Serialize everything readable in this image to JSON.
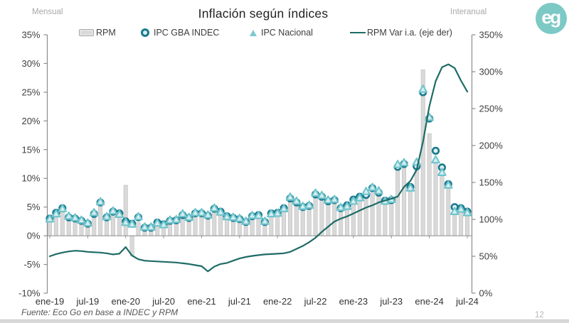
{
  "header": {
    "left_label": "Mensual",
    "title": "Inflación según índices",
    "right_label": "Interanual",
    "logo_text": "eg"
  },
  "legend": {
    "items": [
      {
        "label": "RPM",
        "icon": "gray-bar-swatch"
      },
      {
        "label": "IPC GBA INDEC",
        "icon": "teal-circle-marker"
      },
      {
        "label": "IPC Nacional",
        "icon": "light-teal-triangle-marker"
      },
      {
        "label": "RPM Var i.a. (eje der)",
        "icon": "dark-teal-line"
      }
    ]
  },
  "footer": {
    "source": "Fuente: Eco Go en base a INDEC y RPM",
    "page_number": "12"
  },
  "colors": {
    "bar_fill": "#d9d9d9",
    "bar_stroke": "#bdbdbd",
    "circle_stroke": "#1a7a8e",
    "circle_fill": "#e3f1f4",
    "triangle_stroke": "#6fc4cc",
    "triangle_fill": "#d8eef0",
    "line": "#1e6b66",
    "axis": "#8c8c8c",
    "axis_text": "#3f3f3f",
    "logo": "#7cc9c5"
  },
  "chart_data": {
    "type": "combo",
    "months": [
      "ene-19",
      "feb-19",
      "mar-19",
      "abr-19",
      "may-19",
      "jun-19",
      "jul-19",
      "ago-19",
      "sep-19",
      "oct-19",
      "nov-19",
      "dic-19",
      "ene-20",
      "feb-20",
      "mar-20",
      "abr-20",
      "may-20",
      "jun-20",
      "jul-20",
      "ago-20",
      "sep-20",
      "oct-20",
      "nov-20",
      "dic-20",
      "ene-21",
      "feb-21",
      "mar-21",
      "abr-21",
      "may-21",
      "jun-21",
      "jul-21",
      "ago-21",
      "sep-21",
      "oct-21",
      "nov-21",
      "dic-21",
      "ene-22",
      "feb-22",
      "mar-22",
      "abr-22",
      "may-22",
      "jun-22",
      "jul-22",
      "ago-22",
      "sep-22",
      "oct-22",
      "nov-22",
      "dic-22",
      "ene-23",
      "feb-23",
      "mar-23",
      "abr-23",
      "may-23",
      "jun-23",
      "jul-23",
      "ago-23",
      "sep-23",
      "oct-23",
      "nov-23",
      "dic-23",
      "ene-24",
      "feb-24",
      "mar-24",
      "abr-24",
      "may-24",
      "jun-24",
      "jul-24"
    ],
    "x_tick_labels": [
      "ene-19",
      "jul-19",
      "ene-20",
      "jul-20",
      "ene-21",
      "jul-21",
      "ene-22",
      "jul-22",
      "ene-23",
      "jul-23",
      "ene-24",
      "jul-24"
    ],
    "x_tick_indices": [
      0,
      6,
      12,
      18,
      24,
      30,
      36,
      42,
      48,
      54,
      60,
      66
    ],
    "left_axis": {
      "min": -10,
      "max": 35,
      "tick_values": [
        35,
        30,
        25,
        20,
        15,
        10,
        5,
        0,
        -5,
        -10
      ],
      "tick_labels": [
        "35%",
        "30%",
        "25%",
        "20%",
        "15%",
        "10%",
        "5%",
        "0%",
        "-5%",
        "-10%"
      ]
    },
    "right_axis": {
      "min": 0,
      "max": 350,
      "tick_values": [
        350,
        300,
        250,
        200,
        150,
        100,
        50,
        0
      ],
      "tick_labels": [
        "350%",
        "300%",
        "250%",
        "200%",
        "150%",
        "100%",
        "50%",
        "0%"
      ]
    },
    "series": [
      {
        "name": "RPM",
        "kind": "bar",
        "axis": "left",
        "values": [
          2.8,
          3.5,
          4.1,
          3.7,
          3.2,
          2.9,
          2.4,
          4.2,
          5.9,
          3.5,
          4.3,
          3.9,
          8.8,
          -3.5,
          2.3,
          1.3,
          1.5,
          2.0,
          2.2,
          2.4,
          2.8,
          3.2,
          3.4,
          3.7,
          3.8,
          3.4,
          4.5,
          3.8,
          3.2,
          3.0,
          2.8,
          2.4,
          3.2,
          3.3,
          2.4,
          3.6,
          3.7,
          4.4,
          6.2,
          5.6,
          4.8,
          5.0,
          6.7,
          6.6,
          5.9,
          5.8,
          4.6,
          4.8,
          5.6,
          6.2,
          7.2,
          7.9,
          7.3,
          5.7,
          6.0,
          12.0,
          12.3,
          8.0,
          12.4,
          28.9,
          17.8,
          13.5,
          11.0,
          8.3,
          4.8,
          4.4,
          4.0
        ]
      },
      {
        "name": "IPC GBA INDEC",
        "kind": "scatter-circle",
        "axis": "left",
        "values": [
          3.0,
          4.0,
          4.8,
          3.2,
          3.0,
          2.6,
          2.1,
          3.8,
          5.8,
          3.2,
          4.2,
          3.9,
          2.5,
          2.1,
          3.2,
          1.4,
          1.4,
          2.3,
          2.0,
          2.6,
          2.7,
          3.6,
          3.1,
          3.9,
          3.9,
          3.5,
          4.7,
          4.2,
          3.4,
          3.1,
          2.9,
          2.4,
          3.4,
          3.6,
          2.4,
          3.9,
          4.0,
          4.8,
          6.5,
          5.8,
          5.0,
          5.2,
          7.2,
          6.8,
          6.0,
          6.2,
          4.8,
          5.3,
          6.3,
          6.8,
          7.1,
          8.3,
          7.5,
          6.1,
          6.2,
          12.0,
          12.5,
          8.5,
          12.1,
          25.0,
          20.4,
          14.8,
          11.9,
          9.0,
          5.0,
          4.8,
          4.2
        ]
      },
      {
        "name": "IPC Nacional",
        "kind": "scatter-triangle",
        "axis": "left",
        "values": [
          2.9,
          3.8,
          4.7,
          3.4,
          3.1,
          2.7,
          2.2,
          4.0,
          5.9,
          3.3,
          4.3,
          3.7,
          2.3,
          2.0,
          3.3,
          1.5,
          1.5,
          2.2,
          1.9,
          2.7,
          2.8,
          3.8,
          3.2,
          4.0,
          4.0,
          3.6,
          4.8,
          4.1,
          3.3,
          3.2,
          3.0,
          2.5,
          3.5,
          3.5,
          2.5,
          3.8,
          3.9,
          4.7,
          6.7,
          6.0,
          5.1,
          5.3,
          7.4,
          7.0,
          6.2,
          6.3,
          4.9,
          5.1,
          6.0,
          6.6,
          7.7,
          8.4,
          7.8,
          6.0,
          6.3,
          12.4,
          12.7,
          8.3,
          12.8,
          25.5,
          20.6,
          13.2,
          11.0,
          8.8,
          4.2,
          4.6,
          4.0
        ]
      },
      {
        "name": "RPM Var i.a. (eje der)",
        "kind": "line",
        "axis": "right",
        "values": [
          50,
          53,
          55,
          56.5,
          57.5,
          57,
          56,
          55.5,
          55,
          54,
          52.5,
          53.5,
          62.5,
          51,
          46,
          44,
          43.5,
          43,
          42.5,
          42,
          41.5,
          40.5,
          39.5,
          38,
          36.5,
          29.5,
          36,
          39.5,
          41,
          44,
          47,
          49,
          50.5,
          51.5,
          52.5,
          53,
          53.5,
          54,
          56,
          60,
          64,
          69,
          75,
          83,
          90,
          97,
          101,
          104,
          108,
          112,
          116,
          119,
          123,
          125.5,
          128,
          131,
          144,
          152,
          167,
          205,
          253,
          287,
          306,
          310,
          305,
          288,
          273
        ]
      }
    ]
  }
}
